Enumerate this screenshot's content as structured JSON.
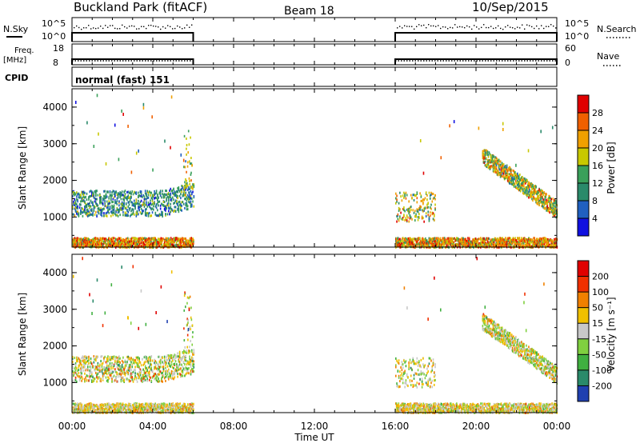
{
  "header": {
    "station": "Buckland Park (fitACF)",
    "beam": "Beam 18",
    "date": "10/Sep/2015"
  },
  "panels": {
    "nsky_label": "N.Sky",
    "nsearch_label": "N.Search",
    "nsky_ticks": [
      "10^5",
      "10^0"
    ],
    "nsky_right_ticks": [
      "10^5",
      "10^0"
    ],
    "freq_label": "Freq.",
    "freq_unit": "[MHz]",
    "freq_ticks": [
      "18",
      "8"
    ],
    "nave_label": "Nave",
    "nave_ticks": [
      "60",
      "0"
    ],
    "cpid_label": "CPID",
    "cpid_text": "normal (fast) 151"
  },
  "chart_data": [
    {
      "type": "heatmap",
      "name": "power",
      "ylabel": "Slant Range [km]",
      "ylim": [
        180,
        4500
      ],
      "yticks": [
        1000,
        2000,
        3000,
        4000
      ],
      "xlim_hours": [
        0,
        24
      ],
      "colorbar_label": "Power [dB]",
      "colorbar_ticks": [
        "28",
        "24",
        "20",
        "16",
        "12",
        "8",
        "4"
      ],
      "colors": [
        "#1010e0",
        "#2060c0",
        "#2a8a6a",
        "#3aa05a",
        "#c8c800",
        "#f0a000",
        "#f06000",
        "#e00000"
      ],
      "data_gap_hours": [
        6,
        16
      ]
    },
    {
      "type": "heatmap",
      "name": "velocity",
      "ylabel": "Slant Range [km]",
      "ylim": [
        180,
        4500
      ],
      "yticks": [
        1000,
        2000,
        3000,
        4000
      ],
      "xlim_hours": [
        0,
        24
      ],
      "colorbar_label": "Velocity [m s⁻¹]",
      "colorbar_ticks": [
        "200",
        "100",
        "50",
        "15",
        "-15",
        "-50",
        "-100",
        "-200"
      ],
      "colors": [
        "#2040b0",
        "#2a8a6a",
        "#40b040",
        "#80d040",
        "#c8c8c8",
        "#f0c000",
        "#f08000",
        "#f03000",
        "#e00000"
      ],
      "data_gap_hours": [
        6,
        16
      ]
    }
  ],
  "xaxis": {
    "ticks": [
      "00:00",
      "04:00",
      "08:00",
      "12:00",
      "16:00",
      "20:00",
      "00:00"
    ],
    "label": "Time UT"
  }
}
